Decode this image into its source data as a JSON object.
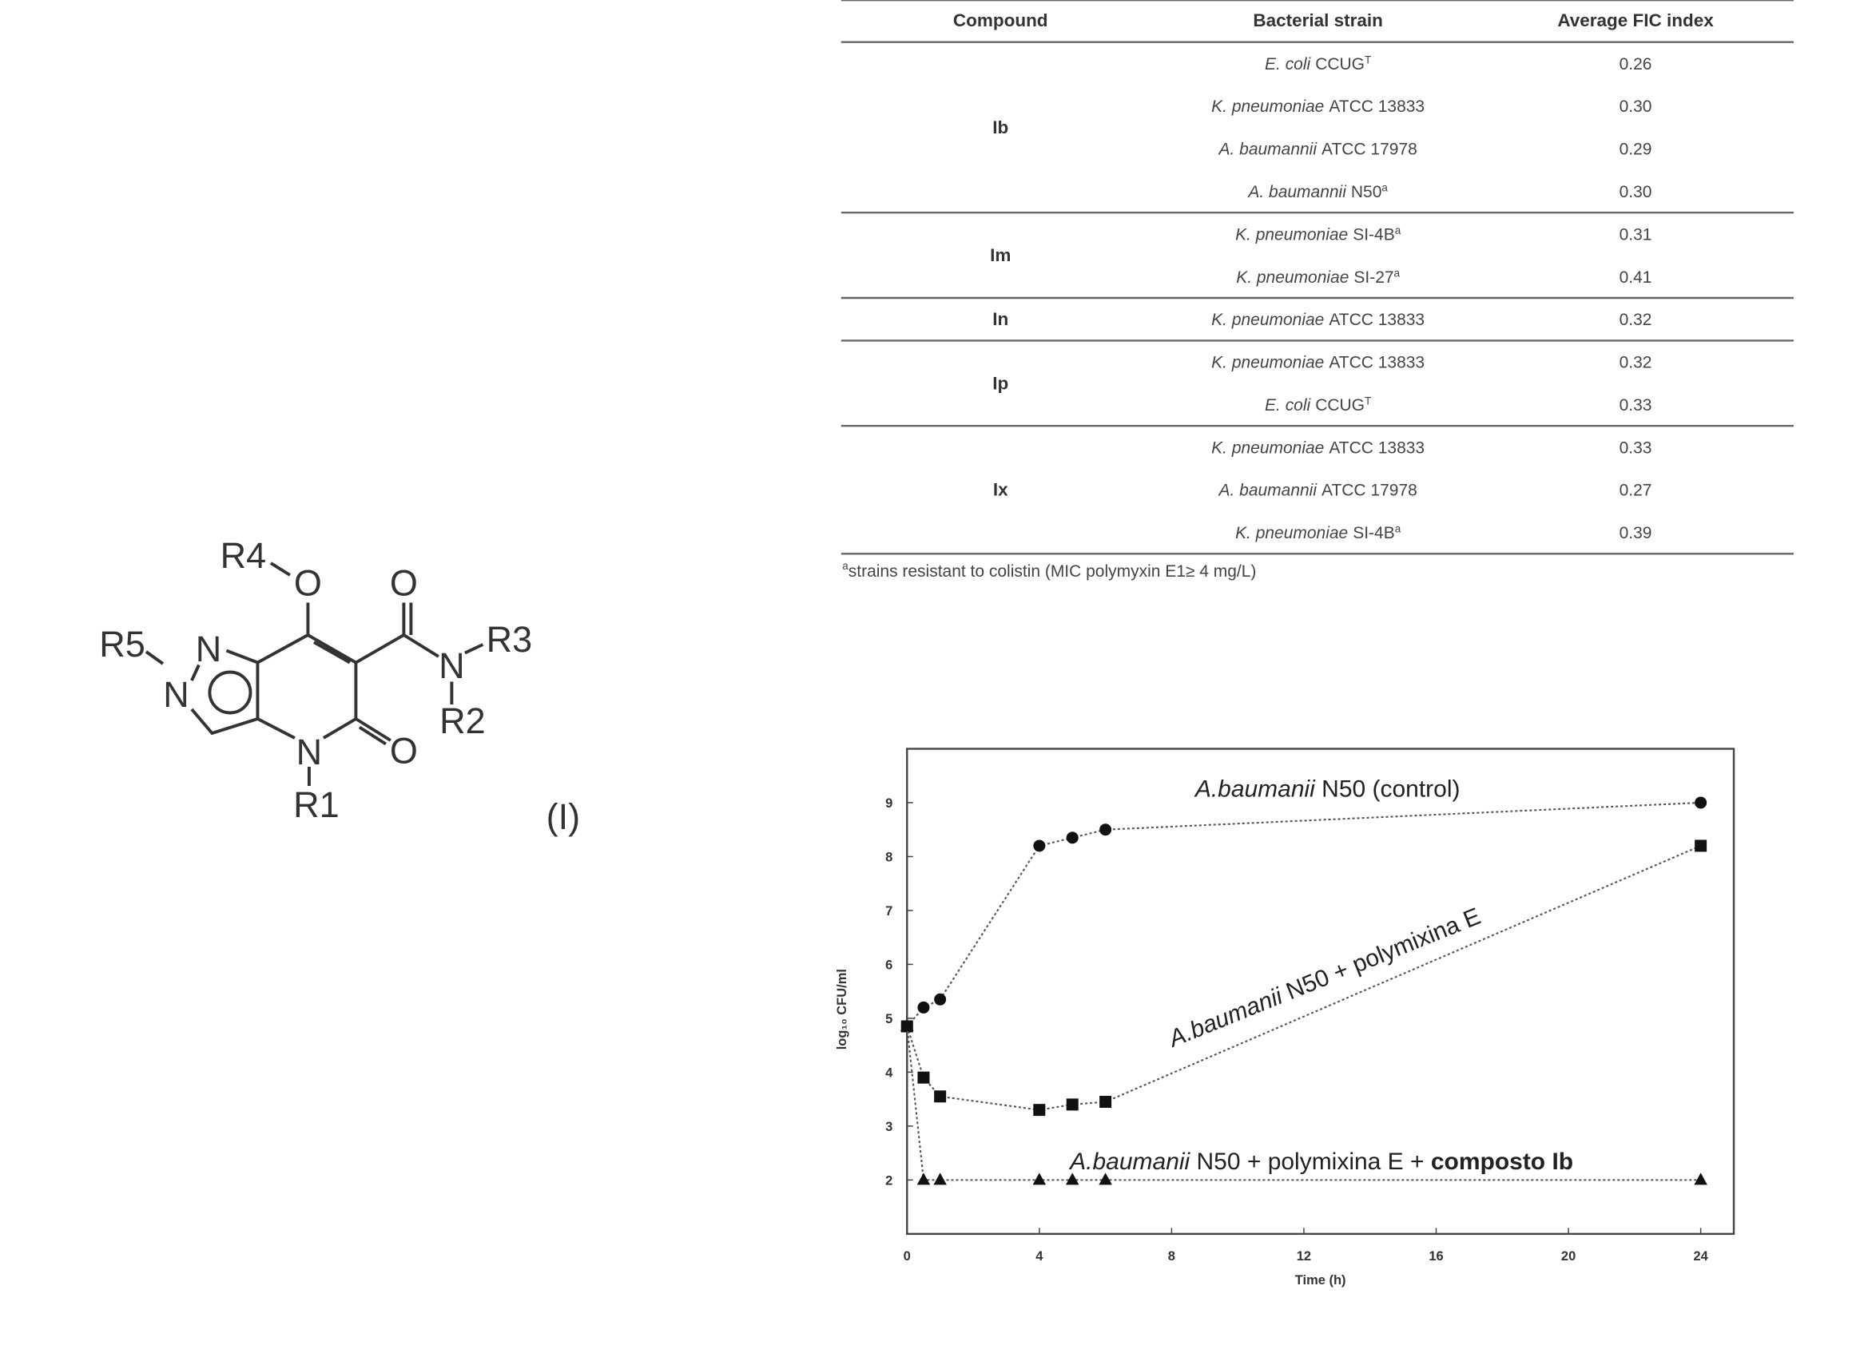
{
  "structure": {
    "labels": [
      "R4",
      "O",
      "O",
      "R5",
      "N",
      "N",
      "N",
      "R3",
      "R2",
      "O",
      "N",
      "R1"
    ],
    "compound_label": "(I)"
  },
  "table": {
    "columns": [
      "Compound",
      "Bacterial strain",
      "Average FIC index"
    ],
    "groups": [
      {
        "compound": "Ib",
        "rows": [
          {
            "strain": {
              "species": "E. coli",
              "name": "CCUG",
              "sup": "T"
            },
            "fic": "0.26"
          },
          {
            "strain": {
              "species": "K. pneumoniae",
              "name": "ATCC 13833"
            },
            "fic": "0.30"
          },
          {
            "strain": {
              "species": "A. baumannii",
              "name": "ATCC 17978"
            },
            "fic": "0.29"
          },
          {
            "strain": {
              "species": "A. baumannii",
              "name": "N50",
              "sup": "a"
            },
            "fic": "0.30"
          }
        ]
      },
      {
        "compound": "Im",
        "rows": [
          {
            "strain": {
              "species": "K. pneumoniae",
              "name": "SI-4B",
              "sup": "a"
            },
            "fic": "0.31"
          },
          {
            "strain": {
              "species": "K. pneumoniae",
              "name": "SI-27",
              "sup": "a"
            },
            "fic": "0.41"
          }
        ]
      },
      {
        "compound": "In",
        "rows": [
          {
            "strain": {
              "species": "K. pneumoniae",
              "name": "ATCC 13833"
            },
            "fic": "0.32"
          }
        ]
      },
      {
        "compound": "Ip",
        "rows": [
          {
            "strain": {
              "species": "K. pneumoniae",
              "name": "ATCC 13833"
            },
            "fic": "0.32"
          },
          {
            "strain": {
              "species": "E. coli",
              "name": "CCUG",
              "sup": "T"
            },
            "fic": "0.33"
          }
        ]
      },
      {
        "compound": "Ix",
        "rows": [
          {
            "strain": {
              "species": "K. pneumoniae",
              "name": "ATCC 13833"
            },
            "fic": "0.33"
          },
          {
            "strain": {
              "species": "A. baumannii",
              "name": "ATCC 17978"
            },
            "fic": "0.27"
          },
          {
            "strain": {
              "species": "K. pneumoniae",
              "name": "SI-4B",
              "sup": "a"
            },
            "fic": "0.39"
          }
        ]
      }
    ],
    "footnote": {
      "mark": "a",
      "text": "strains resistant to colistin (MIC polymyxin E1≥ 4 mg/L)"
    }
  },
  "chart_data": {
    "type": "line",
    "x_label": "Time (h)",
    "y_label": "log₁₀ CFU/ml",
    "x": [
      0,
      0.5,
      1,
      4,
      5,
      6,
      24
    ],
    "series": [
      {
        "color": "#111111",
        "marker": "circle",
        "values": [
          4.85,
          5.2,
          5.35,
          8.2,
          8.35,
          8.5,
          9.0
        ]
      },
      {
        "color": "#111111",
        "marker": "square",
        "values": [
          4.85,
          3.9,
          3.55,
          3.3,
          3.4,
          3.45,
          8.2
        ]
      },
      {
        "color": "#111111",
        "marker": "triangle",
        "values": [
          4.85,
          2,
          2,
          2,
          2,
          2,
          2
        ]
      }
    ],
    "xlim": [
      0,
      25
    ],
    "ylim": [
      1,
      10
    ],
    "xticks": [
      0,
      4,
      8,
      12,
      16,
      20,
      24
    ],
    "yticks": [
      2,
      3,
      4,
      5,
      6,
      7,
      8,
      9
    ],
    "annotations": [
      {
        "runs": [
          {
            "text": "A.baumanii",
            "style": "italic"
          },
          {
            "text": " N50 (control)",
            "style": "normal"
          }
        ]
      },
      {
        "runs": [
          {
            "text": "A.baumanii",
            "style": "italic"
          },
          {
            "text": " N50 + polymixina E",
            "style": "normal"
          }
        ]
      },
      {
        "runs": [
          {
            "text": "A.baumanii",
            "style": "italic"
          },
          {
            "text": " N50 + polymixina E + ",
            "style": "normal"
          },
          {
            "text": "composto Ib",
            "style": "bold"
          }
        ]
      }
    ]
  }
}
